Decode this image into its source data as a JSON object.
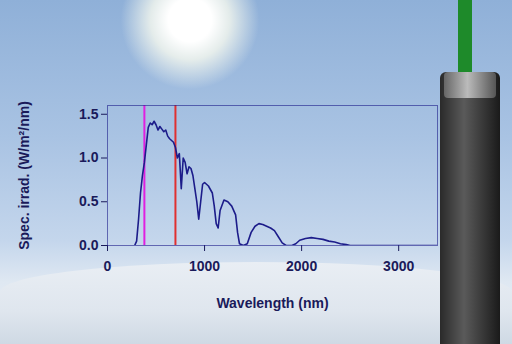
{
  "chart_data": {
    "type": "line",
    "x_label": "Wavelength (nm)",
    "y_label": "Spec. irrad. (W/m²/nm)",
    "color": "#1c1c8a",
    "x": [
      280,
      300,
      320,
      340,
      360,
      380,
      400,
      420,
      440,
      460,
      480,
      500,
      520,
      540,
      560,
      580,
      600,
      620,
      640,
      660,
      680,
      700,
      720,
      740,
      760,
      780,
      800,
      820,
      840,
      860,
      880,
      900,
      920,
      940,
      960,
      980,
      1000,
      1040,
      1080,
      1100,
      1120,
      1140,
      1160,
      1200,
      1240,
      1280,
      1320,
      1340,
      1360,
      1400,
      1440,
      1480,
      1520,
      1560,
      1600,
      1640,
      1680,
      1720,
      1760,
      1800,
      1840,
      1900,
      1940,
      1980,
      2040,
      2100,
      2160,
      2220,
      2280,
      2340,
      2400,
      2460,
      2500,
      3000,
      3400
    ],
    "values": [
      0,
      0.05,
      0.3,
      0.6,
      0.8,
      0.95,
      1.15,
      1.35,
      1.4,
      1.38,
      1.42,
      1.38,
      1.32,
      1.36,
      1.33,
      1.3,
      1.32,
      1.25,
      1.22,
      1.2,
      1.18,
      1.12,
      1.0,
      1.05,
      0.65,
      1.0,
      0.95,
      0.82,
      0.9,
      0.88,
      0.8,
      0.65,
      0.5,
      0.3,
      0.5,
      0.7,
      0.72,
      0.68,
      0.6,
      0.45,
      0.25,
      0.2,
      0.4,
      0.52,
      0.5,
      0.45,
      0.35,
      0.15,
      0.02,
      0,
      0.02,
      0.15,
      0.22,
      0.25,
      0.24,
      0.22,
      0.2,
      0.17,
      0.1,
      0.03,
      0,
      0,
      0.02,
      0.06,
      0.08,
      0.09,
      0.08,
      0.07,
      0.05,
      0.04,
      0.02,
      0.01,
      0,
      0,
      0
    ],
    "xlim": [
      0,
      3400
    ],
    "ylim": [
      0,
      1.6
    ],
    "xticks": [
      0,
      1000,
      2000,
      3000
    ],
    "yticks": [
      {
        "value": 0,
        "label": "0.0"
      },
      {
        "value": 0.5,
        "label": "0.5"
      },
      {
        "value": 1,
        "label": "1.0"
      },
      {
        "value": 1.5,
        "label": "1.5"
      }
    ],
    "grid": false,
    "vertical_lines": [
      {
        "x": 380,
        "color": "#e020e0"
      },
      {
        "x": 700,
        "color": "#e03030"
      }
    ]
  }
}
